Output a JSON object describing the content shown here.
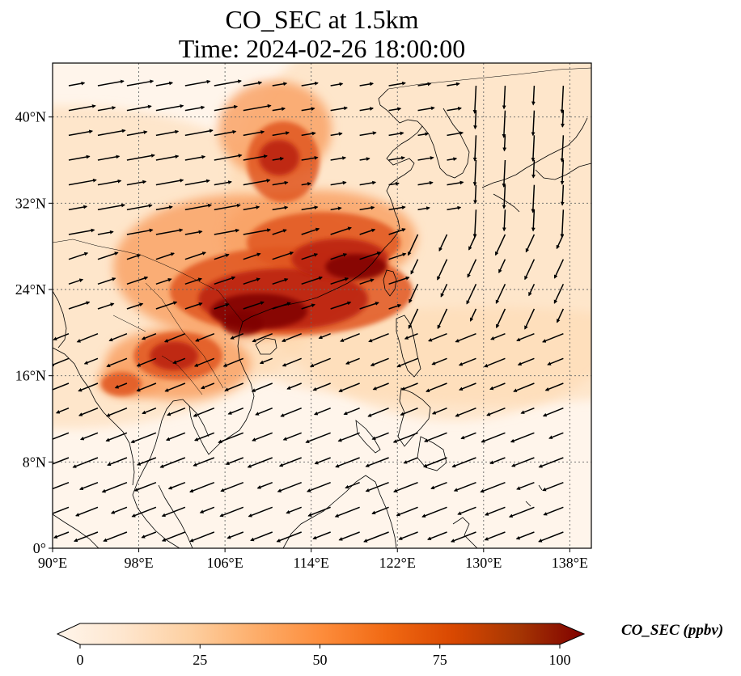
{
  "title": {
    "line1": "CO_SEC at 1.5km",
    "line2": "Time: 2024-02-26 18:00:00"
  },
  "map": {
    "lon_range": [
      90,
      140
    ],
    "lat_range": [
      0,
      45
    ],
    "lon_ticks": [
      {
        "value": 90,
        "label": "90°E"
      },
      {
        "value": 98,
        "label": "98°E"
      },
      {
        "value": 106,
        "label": "106°E"
      },
      {
        "value": 114,
        "label": "114°E"
      },
      {
        "value": 122,
        "label": "122°E"
      },
      {
        "value": 130,
        "label": "130°E"
      },
      {
        "value": 138,
        "label": "138°E"
      }
    ],
    "lat_ticks": [
      {
        "value": 0,
        "label": "0°"
      },
      {
        "value": 8,
        "label": "8°N"
      },
      {
        "value": 16,
        "label": "16°N"
      },
      {
        "value": 24,
        "label": "24°N"
      },
      {
        "value": 32,
        "label": "32°N"
      },
      {
        "value": 40,
        "label": "40°N"
      }
    ],
    "gridlines": true,
    "plume_colors": [
      "#fff5eb",
      "#fdd9b0",
      "#f9a266",
      "#e1561f",
      "#b81c0b",
      "#7f0000"
    ]
  },
  "colorbar": {
    "label": "CO_SEC (ppbv)",
    "min": 0,
    "max": 100,
    "ticks": [
      {
        "value": 0,
        "label": "0"
      },
      {
        "value": 25,
        "label": "25"
      },
      {
        "value": 50,
        "label": "50"
      },
      {
        "value": 75,
        "label": "75"
      },
      {
        "value": 100,
        "label": "100"
      }
    ],
    "extend": "both",
    "colormap": [
      "#fff5eb",
      "#fee6ce",
      "#fdd0a2",
      "#fdae6b",
      "#fd8d3c",
      "#f16913",
      "#d94801",
      "#a63603",
      "#7f0000"
    ]
  }
}
